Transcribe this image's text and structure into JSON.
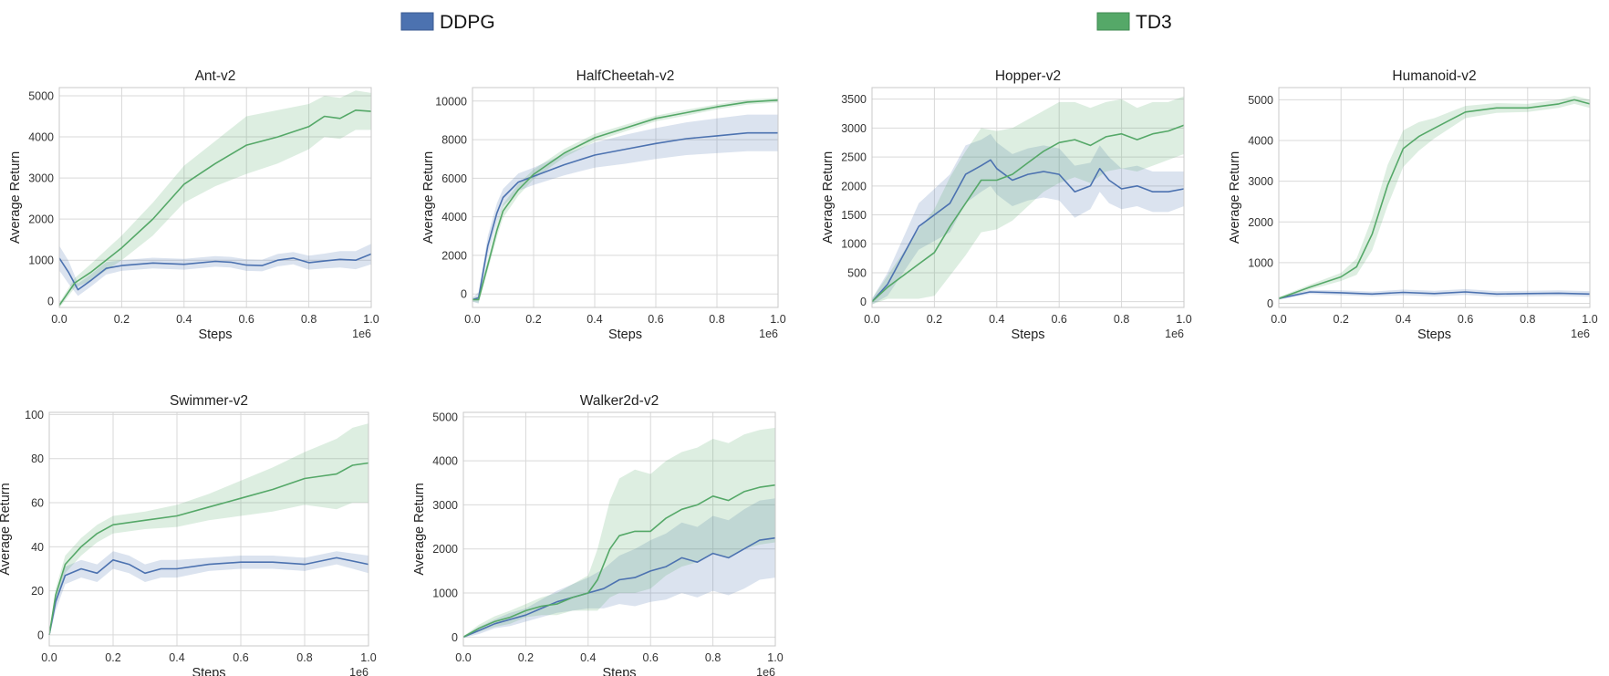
{
  "legend": [
    {
      "name": "DDPG",
      "color": "#4c72b0"
    },
    {
      "name": "TD3",
      "color": "#55a868"
    }
  ],
  "chart_data": [
    {
      "type": "line",
      "title": "Ant-v2",
      "xlabel": "Steps",
      "ylabel": "Average Return",
      "x_multiplier": "1e6",
      "xlim": [
        0,
        1.0
      ],
      "ylim": [
        -150,
        5200
      ],
      "xticks": [
        0.0,
        0.2,
        0.4,
        0.6,
        0.8,
        1.0
      ],
      "yticks": [
        0,
        1000,
        2000,
        3000,
        4000,
        5000
      ],
      "series": [
        {
          "name": "DDPG",
          "x": [
            0,
            0.03,
            0.06,
            0.1,
            0.15,
            0.2,
            0.3,
            0.4,
            0.5,
            0.55,
            0.6,
            0.65,
            0.7,
            0.75,
            0.8,
            0.85,
            0.9,
            0.95,
            1.0
          ],
          "y": [
            1050,
            700,
            280,
            500,
            800,
            870,
            930,
            900,
            970,
            950,
            880,
            870,
            1000,
            1050,
            940,
            980,
            1020,
            1000,
            1150
          ],
          "band": [
            300,
            280,
            150,
            150,
            150,
            130,
            130,
            130,
            130,
            130,
            140,
            140,
            150,
            150,
            170,
            180,
            200,
            220,
            250
          ]
        },
        {
          "name": "TD3",
          "x": [
            0,
            0.05,
            0.1,
            0.2,
            0.3,
            0.4,
            0.5,
            0.6,
            0.7,
            0.8,
            0.85,
            0.9,
            0.95,
            1.0
          ],
          "y": [
            -100,
            450,
            700,
            1300,
            2000,
            2850,
            3350,
            3800,
            4000,
            4250,
            4500,
            4450,
            4650,
            4620
          ],
          "band": [
            60,
            120,
            200,
            300,
            400,
            450,
            550,
            700,
            650,
            550,
            500,
            500,
            480,
            450
          ]
        }
      ]
    },
    {
      "type": "line",
      "title": "HalfCheetah-v2",
      "xlabel": "Steps",
      "ylabel": "Average Return",
      "x_multiplier": "1e6",
      "xlim": [
        0,
        1.0
      ],
      "ylim": [
        -700,
        10700
      ],
      "xticks": [
        0.0,
        0.2,
        0.4,
        0.6,
        0.8,
        1.0
      ],
      "yticks": [
        0,
        2000,
        4000,
        6000,
        8000,
        10000
      ],
      "series": [
        {
          "name": "DDPG",
          "x": [
            0,
            0.02,
            0.05,
            0.08,
            0.1,
            0.15,
            0.2,
            0.3,
            0.4,
            0.5,
            0.6,
            0.7,
            0.8,
            0.9,
            1.0
          ],
          "y": [
            -300,
            -200,
            2500,
            4200,
            5000,
            5800,
            6100,
            6700,
            7200,
            7500,
            7800,
            8050,
            8200,
            8350,
            8350
          ],
          "band": [
            100,
            300,
            500,
            500,
            450,
            450,
            450,
            550,
            650,
            750,
            800,
            850,
            900,
            950,
            950
          ]
        },
        {
          "name": "TD3",
          "x": [
            0,
            0.02,
            0.05,
            0.08,
            0.1,
            0.15,
            0.2,
            0.3,
            0.4,
            0.5,
            0.6,
            0.7,
            0.8,
            0.9,
            1.0
          ],
          "y": [
            -300,
            -300,
            1500,
            3300,
            4300,
            5400,
            6200,
            7300,
            8100,
            8600,
            9100,
            9400,
            9700,
            9950,
            10050
          ],
          "band": [
            100,
            150,
            300,
            350,
            350,
            300,
            250,
            220,
            200,
            170,
            150,
            150,
            130,
            130,
            120
          ]
        }
      ]
    },
    {
      "type": "line",
      "title": "Hopper-v2",
      "xlabel": "Steps",
      "ylabel": "Average Return",
      "x_multiplier": "1e6",
      "xlim": [
        0,
        1.0
      ],
      "ylim": [
        -100,
        3700
      ],
      "xticks": [
        0.0,
        0.2,
        0.4,
        0.6,
        0.8,
        1.0
      ],
      "yticks": [
        0,
        500,
        1000,
        1500,
        2000,
        2500,
        3000,
        3500
      ],
      "series": [
        {
          "name": "DDPG",
          "x": [
            0,
            0.05,
            0.1,
            0.15,
            0.2,
            0.25,
            0.3,
            0.35,
            0.38,
            0.4,
            0.45,
            0.5,
            0.55,
            0.6,
            0.65,
            0.7,
            0.73,
            0.76,
            0.8,
            0.85,
            0.9,
            0.95,
            1.0
          ],
          "y": [
            0,
            300,
            800,
            1300,
            1500,
            1700,
            2200,
            2350,
            2450,
            2300,
            2100,
            2200,
            2250,
            2200,
            1900,
            2000,
            2300,
            2100,
            1950,
            2000,
            1900,
            1900,
            1950
          ],
          "band": [
            50,
            200,
            300,
            400,
            450,
            500,
            500,
            450,
            450,
            450,
            450,
            450,
            450,
            450,
            450,
            400,
            400,
            400,
            350,
            350,
            350,
            350,
            300
          ]
        },
        {
          "name": "TD3",
          "x": [
            0,
            0.05,
            0.1,
            0.15,
            0.2,
            0.25,
            0.3,
            0.35,
            0.4,
            0.45,
            0.5,
            0.55,
            0.6,
            0.65,
            0.7,
            0.75,
            0.8,
            0.85,
            0.9,
            0.95,
            1.0
          ],
          "y": [
            0,
            250,
            450,
            650,
            850,
            1300,
            1700,
            2100,
            2100,
            2200,
            2400,
            2600,
            2750,
            2800,
            2700,
            2850,
            2900,
            2800,
            2900,
            2950,
            3050
          ],
          "band": [
            50,
            200,
            400,
            600,
            750,
            850,
            900,
            900,
            850,
            800,
            750,
            700,
            700,
            650,
            650,
            600,
            600,
            550,
            550,
            500,
            500
          ]
        }
      ]
    },
    {
      "type": "line",
      "title": "Humanoid-v2",
      "xlabel": "Steps",
      "ylabel": "Average Return",
      "x_multiplier": "1e6",
      "xlim": [
        0,
        1.0
      ],
      "ylim": [
        -100,
        5300
      ],
      "xticks": [
        0.0,
        0.2,
        0.4,
        0.6,
        0.8,
        1.0
      ],
      "yticks": [
        0,
        1000,
        2000,
        3000,
        4000,
        5000
      ],
      "series": [
        {
          "name": "DDPG",
          "x": [
            0,
            0.1,
            0.2,
            0.3,
            0.4,
            0.5,
            0.6,
            0.7,
            0.8,
            0.9,
            1.0
          ],
          "y": [
            120,
            280,
            260,
            230,
            270,
            240,
            280,
            230,
            240,
            250,
            230
          ],
          "band": [
            30,
            50,
            60,
            60,
            70,
            70,
            70,
            70,
            70,
            70,
            70
          ]
        },
        {
          "name": "TD3",
          "x": [
            0,
            0.1,
            0.2,
            0.25,
            0.3,
            0.35,
            0.4,
            0.45,
            0.5,
            0.55,
            0.6,
            0.7,
            0.8,
            0.9,
            0.95,
            1.0
          ],
          "y": [
            120,
            400,
            650,
            900,
            1700,
            2900,
            3800,
            4100,
            4300,
            4500,
            4700,
            4800,
            4800,
            4900,
            5000,
            4900
          ],
          "band": [
            30,
            60,
            100,
            200,
            400,
            500,
            450,
            350,
            250,
            200,
            150,
            120,
            100,
            100,
            100,
            100
          ]
        }
      ]
    },
    {
      "type": "line",
      "title": "Swimmer-v2",
      "xlabel": "Steps",
      "ylabel": "Average Return",
      "x_multiplier": "1e6",
      "xlim": [
        0,
        1.0
      ],
      "ylim": [
        -5,
        101
      ],
      "xticks": [
        0.0,
        0.2,
        0.4,
        0.6,
        0.8,
        1.0
      ],
      "yticks": [
        0,
        20,
        40,
        60,
        80,
        100
      ],
      "series": [
        {
          "name": "DDPG",
          "x": [
            0,
            0.02,
            0.05,
            0.1,
            0.15,
            0.2,
            0.25,
            0.3,
            0.35,
            0.4,
            0.5,
            0.6,
            0.7,
            0.8,
            0.9,
            1.0
          ],
          "y": [
            0,
            15,
            27,
            30,
            28,
            34,
            32,
            28,
            30,
            30,
            32,
            33,
            33,
            32,
            35,
            32
          ],
          "band": [
            1,
            4,
            4,
            4,
            4,
            4,
            4,
            4,
            4,
            4,
            3,
            3,
            3,
            3,
            3,
            4
          ]
        },
        {
          "name": "TD3",
          "x": [
            0,
            0.02,
            0.05,
            0.1,
            0.15,
            0.2,
            0.3,
            0.4,
            0.5,
            0.6,
            0.7,
            0.8,
            0.85,
            0.9,
            0.95,
            1.0
          ],
          "y": [
            0,
            18,
            32,
            40,
            46,
            50,
            52,
            54,
            58,
            62,
            66,
            71,
            72,
            73,
            77,
            78
          ],
          "band": [
            1,
            3,
            4,
            4,
            4,
            4,
            4,
            5,
            6,
            8,
            10,
            12,
            14,
            16,
            17,
            18
          ]
        }
      ]
    },
    {
      "type": "line",
      "title": "Walker2d-v2",
      "xlabel": "Steps",
      "ylabel": "Average Return",
      "x_multiplier": "1e6",
      "xlim": [
        0,
        1.0
      ],
      "ylim": [
        -200,
        5100
      ],
      "xticks": [
        0.0,
        0.2,
        0.4,
        0.6,
        0.8,
        1.0
      ],
      "yticks": [
        0,
        1000,
        2000,
        3000,
        4000,
        5000
      ],
      "series": [
        {
          "name": "DDPG",
          "x": [
            0,
            0.05,
            0.1,
            0.15,
            0.2,
            0.25,
            0.3,
            0.35,
            0.4,
            0.45,
            0.5,
            0.55,
            0.6,
            0.65,
            0.7,
            0.75,
            0.8,
            0.85,
            0.9,
            0.95,
            1.0
          ],
          "y": [
            0,
            150,
            300,
            400,
            500,
            650,
            800,
            900,
            1000,
            1100,
            1300,
            1350,
            1500,
            1600,
            1800,
            1700,
            1900,
            1800,
            2000,
            2200,
            2250
          ],
          "band": [
            20,
            80,
            100,
            150,
            150,
            200,
            250,
            300,
            350,
            450,
            550,
            650,
            700,
            750,
            800,
            800,
            850,
            850,
            900,
            900,
            900
          ]
        },
        {
          "name": "TD3",
          "x": [
            0,
            0.05,
            0.1,
            0.15,
            0.2,
            0.25,
            0.3,
            0.35,
            0.4,
            0.43,
            0.47,
            0.5,
            0.55,
            0.6,
            0.65,
            0.7,
            0.75,
            0.8,
            0.85,
            0.9,
            0.95,
            1.0
          ],
          "y": [
            0,
            200,
            350,
            450,
            600,
            700,
            750,
            900,
            1000,
            1300,
            2000,
            2300,
            2400,
            2400,
            2700,
            2900,
            3000,
            3200,
            3100,
            3300,
            3400,
            3450
          ],
          "band": [
            20,
            80,
            120,
            150,
            150,
            200,
            250,
            300,
            400,
            700,
            1100,
            1300,
            1400,
            1300,
            1300,
            1300,
            1300,
            1300,
            1300,
            1300,
            1300,
            1300
          ]
        }
      ]
    }
  ]
}
